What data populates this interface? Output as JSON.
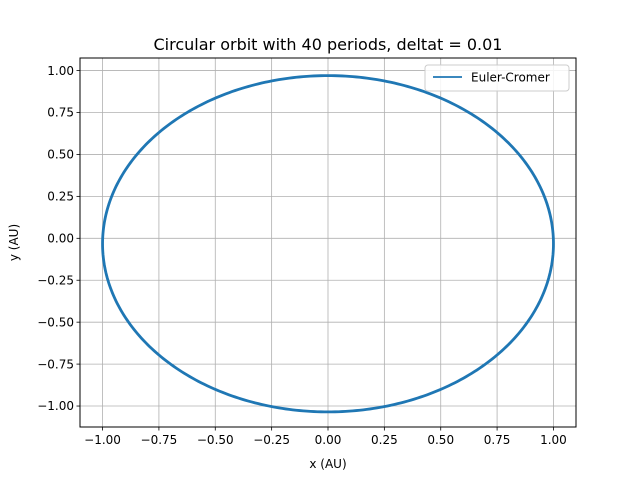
{
  "chart_data": {
    "type": "line",
    "title": "Circular orbit with 40 periods, deltat = 0.01",
    "xlabel": "x (AU)",
    "ylabel": "y (AU)",
    "xlim": [
      -1.1,
      1.1
    ],
    "ylim": [
      -1.125,
      1.075
    ],
    "xticks": [
      -1.0,
      -0.75,
      -0.5,
      -0.25,
      0.0,
      0.25,
      0.5,
      0.75,
      1.0
    ],
    "xtick_labels": [
      "−1.00",
      "−0.75",
      "−0.50",
      "−0.25",
      "0.00",
      "0.25",
      "0.50",
      "0.75",
      "1.00"
    ],
    "yticks": [
      -1.0,
      -0.75,
      -0.5,
      -0.25,
      0.0,
      0.25,
      0.5,
      0.75,
      1.0
    ],
    "ytick_labels": [
      "−1.00",
      "−0.75",
      "−0.50",
      "−0.25",
      "0.00",
      "0.25",
      "0.50",
      "0.75",
      "1.00"
    ],
    "grid": true,
    "legend_position": "top-right",
    "series": [
      {
        "name": "Euler-Cromer",
        "color": "#1f77b4",
        "shape": "closed elliptical orbit",
        "x_range": [
          -1.0,
          1.0
        ],
        "y_range": [
          -1.035,
          0.97
        ]
      }
    ]
  }
}
